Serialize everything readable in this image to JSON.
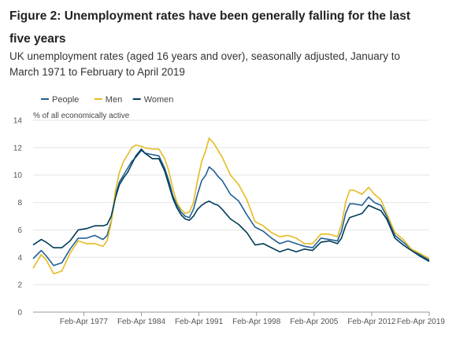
{
  "figure": {
    "title": "Figure 2: Unemployment rates have been generally falling for the last five years",
    "subtitle": "UK unemployment rates (aged 16 years and over), seasonally adjusted, January to March 1971 to February to April 2019"
  },
  "chart_data": {
    "type": "line",
    "ylabel": "% of all economically active",
    "ylim": [
      0,
      14
    ],
    "yticks": [
      "0",
      "2",
      "4",
      "6",
      "8",
      "10",
      "12",
      "14"
    ],
    "xlim": [
      1971.0,
      2019.17
    ],
    "xticks": [
      {
        "label": "Feb-Apr 1977",
        "x": 1977.17
      },
      {
        "label": "Feb-Apr 1984",
        "x": 1984.17
      },
      {
        "label": "Feb-Apr 1991",
        "x": 1991.17
      },
      {
        "label": "Feb-Apr 1998",
        "x": 1998.17
      },
      {
        "label": "Feb-Apr 2005",
        "x": 2005.17
      },
      {
        "label": "Feb-Apr 2012",
        "x": 2012.17
      },
      {
        "label": "Feb-Apr 2019",
        "x": 2019.17
      }
    ],
    "grid": "horizontal",
    "legend_position": "top-left",
    "series": [
      {
        "name": "People",
        "color": "#206095",
        "points": [
          [
            1971.0,
            3.9
          ],
          [
            1972.0,
            4.5
          ],
          [
            1972.6,
            4.1
          ],
          [
            1973.5,
            3.4
          ],
          [
            1974.5,
            3.6
          ],
          [
            1975.5,
            4.6
          ],
          [
            1976.5,
            5.4
          ],
          [
            1977.5,
            5.4
          ],
          [
            1978.5,
            5.6
          ],
          [
            1979.5,
            5.3
          ],
          [
            1980.0,
            5.6
          ],
          [
            1980.5,
            6.6
          ],
          [
            1981.0,
            8.5
          ],
          [
            1981.5,
            9.5
          ],
          [
            1982.0,
            10.0
          ],
          [
            1982.5,
            10.5
          ],
          [
            1983.0,
            11.0
          ],
          [
            1983.5,
            11.3
          ],
          [
            1984.17,
            11.8
          ],
          [
            1984.6,
            11.6
          ],
          [
            1985.5,
            11.5
          ],
          [
            1986.3,
            11.4
          ],
          [
            1987.0,
            10.5
          ],
          [
            1987.5,
            9.6
          ],
          [
            1988.0,
            8.5
          ],
          [
            1988.5,
            7.8
          ],
          [
            1989.0,
            7.3
          ],
          [
            1989.5,
            7.0
          ],
          [
            1990.0,
            6.9
          ],
          [
            1990.5,
            7.5
          ],
          [
            1991.0,
            8.6
          ],
          [
            1991.5,
            9.6
          ],
          [
            1992.0,
            10.0
          ],
          [
            1992.4,
            10.6
          ],
          [
            1993.0,
            10.3
          ],
          [
            1993.5,
            9.9
          ],
          [
            1994.0,
            9.6
          ],
          [
            1995.0,
            8.6
          ],
          [
            1996.0,
            8.1
          ],
          [
            1997.0,
            7.1
          ],
          [
            1998.0,
            6.2
          ],
          [
            1999.0,
            5.9
          ],
          [
            2000.0,
            5.4
          ],
          [
            2001.0,
            5.0
          ],
          [
            2002.0,
            5.2
          ],
          [
            2003.0,
            5.0
          ],
          [
            2004.0,
            4.8
          ],
          [
            2005.0,
            4.7
          ],
          [
            2006.0,
            5.4
          ],
          [
            2007.0,
            5.3
          ],
          [
            2008.0,
            5.2
          ],
          [
            2008.5,
            5.9
          ],
          [
            2009.0,
            7.2
          ],
          [
            2009.5,
            7.9
          ],
          [
            2010.0,
            7.9
          ],
          [
            2011.0,
            7.8
          ],
          [
            2011.8,
            8.4
          ],
          [
            2012.5,
            8.0
          ],
          [
            2013.3,
            7.8
          ],
          [
            2014.0,
            7.0
          ],
          [
            2015.0,
            5.6
          ],
          [
            2016.0,
            5.1
          ],
          [
            2017.0,
            4.6
          ],
          [
            2018.0,
            4.2
          ],
          [
            2019.17,
            3.8
          ]
        ]
      },
      {
        "name": "Men",
        "color": "#e5bb22",
        "points": [
          [
            1971.0,
            3.2
          ],
          [
            1972.0,
            4.2
          ],
          [
            1972.6,
            3.8
          ],
          [
            1973.5,
            2.8
          ],
          [
            1974.5,
            3.0
          ],
          [
            1975.5,
            4.3
          ],
          [
            1976.5,
            5.2
          ],
          [
            1977.5,
            5.0
          ],
          [
            1978.5,
            5.0
          ],
          [
            1979.5,
            4.8
          ],
          [
            1980.0,
            5.2
          ],
          [
            1980.5,
            6.5
          ],
          [
            1981.0,
            8.8
          ],
          [
            1981.5,
            10.2
          ],
          [
            1982.0,
            11.0
          ],
          [
            1982.5,
            11.5
          ],
          [
            1983.0,
            12.0
          ],
          [
            1983.5,
            12.2
          ],
          [
            1984.17,
            12.1
          ],
          [
            1984.6,
            12.0
          ],
          [
            1985.5,
            11.9
          ],
          [
            1986.3,
            11.9
          ],
          [
            1987.0,
            11.2
          ],
          [
            1987.5,
            10.3
          ],
          [
            1988.0,
            9.0
          ],
          [
            1988.5,
            8.0
          ],
          [
            1989.0,
            7.5
          ],
          [
            1989.5,
            7.2
          ],
          [
            1990.0,
            7.3
          ],
          [
            1990.5,
            8.0
          ],
          [
            1991.0,
            9.6
          ],
          [
            1991.5,
            11.0
          ],
          [
            1992.0,
            11.8
          ],
          [
            1992.4,
            12.7
          ],
          [
            1993.0,
            12.3
          ],
          [
            1993.5,
            11.8
          ],
          [
            1994.0,
            11.3
          ],
          [
            1995.0,
            10.0
          ],
          [
            1996.0,
            9.3
          ],
          [
            1997.0,
            8.2
          ],
          [
            1998.0,
            6.6
          ],
          [
            1999.0,
            6.3
          ],
          [
            2000.0,
            5.8
          ],
          [
            2001.0,
            5.5
          ],
          [
            2002.0,
            5.6
          ],
          [
            2003.0,
            5.4
          ],
          [
            2004.0,
            5.0
          ],
          [
            2005.0,
            5.0
          ],
          [
            2006.0,
            5.7
          ],
          [
            2007.0,
            5.7
          ],
          [
            2008.0,
            5.5
          ],
          [
            2008.5,
            6.4
          ],
          [
            2009.0,
            8.0
          ],
          [
            2009.5,
            8.9
          ],
          [
            2010.0,
            8.9
          ],
          [
            2011.0,
            8.6
          ],
          [
            2011.8,
            9.1
          ],
          [
            2012.5,
            8.6
          ],
          [
            2013.3,
            8.2
          ],
          [
            2014.0,
            7.2
          ],
          [
            2015.0,
            5.8
          ],
          [
            2016.0,
            5.3
          ],
          [
            2017.0,
            4.6
          ],
          [
            2018.0,
            4.3
          ],
          [
            2019.17,
            3.9
          ]
        ]
      },
      {
        "name": "Women",
        "color": "#003c57",
        "points": [
          [
            1971.0,
            4.9
          ],
          [
            1972.0,
            5.3
          ],
          [
            1972.6,
            5.1
          ],
          [
            1973.5,
            4.7
          ],
          [
            1974.5,
            4.7
          ],
          [
            1975.5,
            5.2
          ],
          [
            1976.5,
            6.0
          ],
          [
            1977.5,
            6.1
          ],
          [
            1978.5,
            6.3
          ],
          [
            1979.5,
            6.3
          ],
          [
            1980.0,
            6.4
          ],
          [
            1980.5,
            7.0
          ],
          [
            1981.0,
            8.3
          ],
          [
            1981.5,
            9.3
          ],
          [
            1982.0,
            9.8
          ],
          [
            1982.5,
            10.2
          ],
          [
            1983.0,
            10.8
          ],
          [
            1983.5,
            11.4
          ],
          [
            1984.17,
            11.9
          ],
          [
            1984.6,
            11.6
          ],
          [
            1985.5,
            11.2
          ],
          [
            1986.3,
            11.2
          ],
          [
            1987.0,
            10.3
          ],
          [
            1987.5,
            9.3
          ],
          [
            1988.0,
            8.3
          ],
          [
            1988.5,
            7.6
          ],
          [
            1989.0,
            7.1
          ],
          [
            1989.5,
            6.8
          ],
          [
            1990.0,
            6.7
          ],
          [
            1990.5,
            7.0
          ],
          [
            1991.0,
            7.5
          ],
          [
            1991.5,
            7.8
          ],
          [
            1992.0,
            8.0
          ],
          [
            1992.4,
            8.1
          ],
          [
            1993.0,
            7.9
          ],
          [
            1993.5,
            7.8
          ],
          [
            1994.0,
            7.5
          ],
          [
            1995.0,
            6.8
          ],
          [
            1996.0,
            6.4
          ],
          [
            1997.0,
            5.8
          ],
          [
            1998.0,
            4.9
          ],
          [
            1999.0,
            5.0
          ],
          [
            2000.0,
            4.7
          ],
          [
            2001.0,
            4.4
          ],
          [
            2002.0,
            4.6
          ],
          [
            2003.0,
            4.4
          ],
          [
            2004.0,
            4.6
          ],
          [
            2005.0,
            4.5
          ],
          [
            2006.0,
            5.1
          ],
          [
            2007.0,
            5.2
          ],
          [
            2008.0,
            5.0
          ],
          [
            2008.5,
            5.4
          ],
          [
            2009.0,
            6.3
          ],
          [
            2009.5,
            6.9
          ],
          [
            2010.0,
            7.0
          ],
          [
            2011.0,
            7.2
          ],
          [
            2011.8,
            7.8
          ],
          [
            2012.5,
            7.6
          ],
          [
            2013.3,
            7.4
          ],
          [
            2014.0,
            6.8
          ],
          [
            2015.0,
            5.4
          ],
          [
            2016.0,
            4.9
          ],
          [
            2017.0,
            4.5
          ],
          [
            2018.0,
            4.1
          ],
          [
            2019.17,
            3.7
          ]
        ]
      }
    ]
  }
}
